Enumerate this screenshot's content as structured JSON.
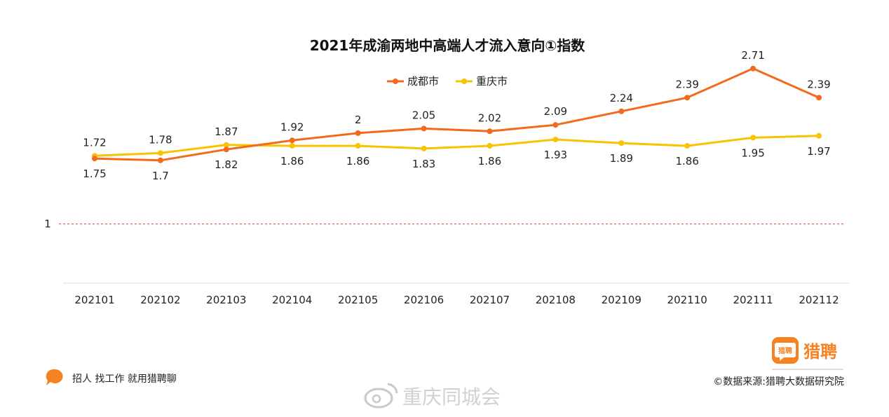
{
  "chart_data": {
    "type": "line",
    "title": "2021年成渝两地中高端人才流入意向①指数",
    "categories": [
      "202101",
      "202102",
      "202103",
      "202104",
      "202105",
      "202106",
      "202107",
      "202108",
      "202109",
      "202110",
      "202111",
      "202112"
    ],
    "series": [
      {
        "name": "成都市",
        "color": "#f26b1d",
        "values": [
          1.72,
          1.7,
          1.82,
          1.92,
          2,
          2.05,
          2.02,
          2.09,
          2.24,
          2.39,
          2.71,
          2.39
        ]
      },
      {
        "name": "重庆市",
        "color": "#f8c400",
        "values": [
          1.75,
          1.78,
          1.87,
          1.86,
          1.86,
          1.83,
          1.86,
          1.93,
          1.89,
          1.86,
          1.95,
          1.97
        ]
      }
    ],
    "reference_line": {
      "value": 1,
      "label": "1",
      "color": "#e53935",
      "style": "dashed"
    },
    "legend_position": "top-center",
    "grid": false
  },
  "footer": {
    "slogan": "招人 找工作 就用猎聘聊",
    "source": "©数据来源:猎聘大数据研究院",
    "brand_name": "猎聘",
    "brand_icon_text": "猎聘",
    "brand_color": "#f5821f",
    "watermark": "重庆同城会"
  }
}
